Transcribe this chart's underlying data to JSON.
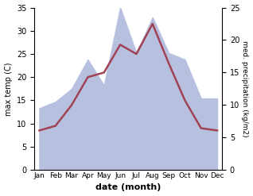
{
  "months": [
    "Jan",
    "Feb",
    "Mar",
    "Apr",
    "May",
    "Jun",
    "Jul",
    "Aug",
    "Sep",
    "Oct",
    "Nov",
    "Dec"
  ],
  "temperature": [
    8.5,
    9.5,
    14.0,
    20.0,
    21.0,
    27.0,
    25.0,
    31.5,
    23.0,
    15.0,
    9.0,
    8.5
  ],
  "precipitation": [
    9.5,
    10.5,
    12.5,
    17.0,
    13.0,
    25.0,
    18.0,
    23.5,
    18.0,
    17.0,
    11.0,
    11.0
  ],
  "temp_color": "#a04455",
  "precip_fill_color": "#b8c0e0",
  "temp_ylim": [
    0,
    35
  ],
  "precip_ylim": [
    0,
    25
  ],
  "temp_yticks": [
    0,
    5,
    10,
    15,
    20,
    25,
    30,
    35
  ],
  "precip_yticks": [
    0,
    5,
    10,
    15,
    20,
    25
  ],
  "xlabel": "date (month)",
  "ylabel_left": "max temp (C)",
  "ylabel_right": "med. precipitation (kg/m2)",
  "bg_color": "#ffffff",
  "temp_scale_max": 35,
  "precip_scale_max": 25
}
